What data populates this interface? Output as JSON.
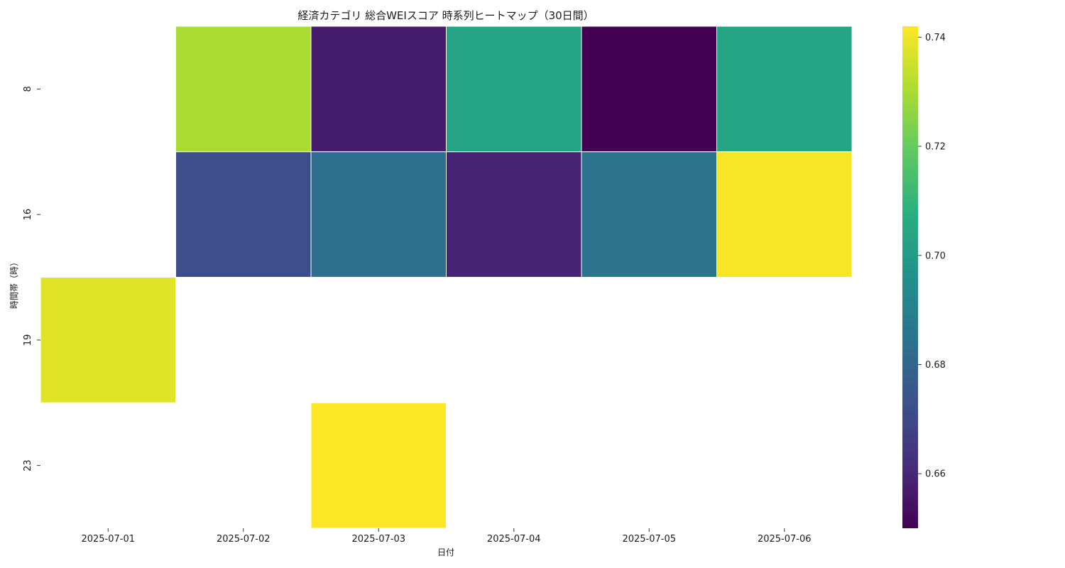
{
  "chart_data": {
    "type": "heatmap",
    "title": "経済カテゴリ 総合WEIスコア 時系列ヒートマップ（30日間）",
    "xlabel": "日付",
    "ylabel": "時間帯（時）",
    "x_categories": [
      "2025-07-01",
      "2025-07-02",
      "2025-07-03",
      "2025-07-04",
      "2025-07-05",
      "2025-07-06"
    ],
    "y_categories": [
      "8",
      "16",
      "19",
      "23"
    ],
    "values": [
      [
        null,
        0.73,
        0.657,
        0.703,
        0.65,
        0.703
      ],
      [
        null,
        0.672,
        0.683,
        0.659,
        0.685,
        0.741
      ],
      [
        0.738,
        null,
        null,
        null,
        null,
        null
      ],
      [
        null,
        null,
        0.742,
        null,
        null,
        null
      ]
    ],
    "colormap": "viridis",
    "colorbar": {
      "vmin": 0.65,
      "vmax": 0.742,
      "ticks": [
        "0.66",
        "0.68",
        "0.70",
        "0.72",
        "0.74"
      ]
    },
    "missing_color": "#ffffff",
    "cell_border_color": "#ffffff"
  }
}
